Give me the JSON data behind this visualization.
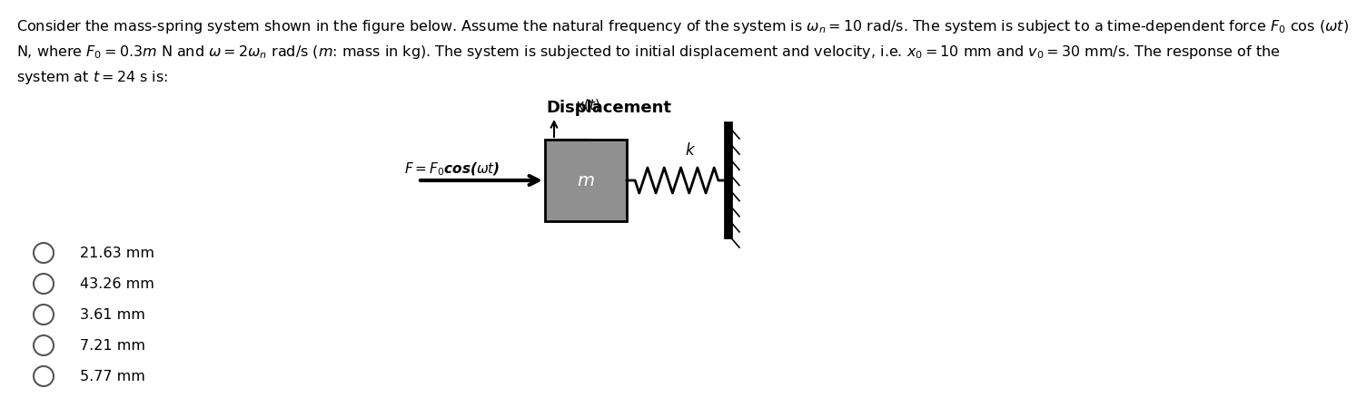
{
  "line1": "Consider the mass-spring system shown in the figure below. Assume the natural frequency of the system is $\\omega_n = 10$ rad/s. The system is subject to a time-dependent force $F_0$ cos ($\\omega t$)",
  "line2": "N, where $F_0 = 0.3m$ N and $\\omega = 2\\omega_n$ rad/s ($m$: mass in kg). The system is subjected to initial displacement and velocity, i.e. $x_0 = 10$ mm and $v_0 = 30$ mm/s. The response of the",
  "line3": "system at $t = 24$ s is:",
  "diag_title": "Displacement",
  "xt_label": "$x(t)$",
  "force_label": "$F = F_0$cos($\\omega t$)",
  "mass_label": "$m$",
  "spring_label": "$k$",
  "choices": [
    "21.63 mm",
    "43.26 mm",
    "3.61 mm",
    "7.21 mm",
    "5.77 mm"
  ],
  "bg_color": "#ffffff",
  "text_color": "#000000",
  "mass_fill": "#909090",
  "mass_edge": "#000000"
}
